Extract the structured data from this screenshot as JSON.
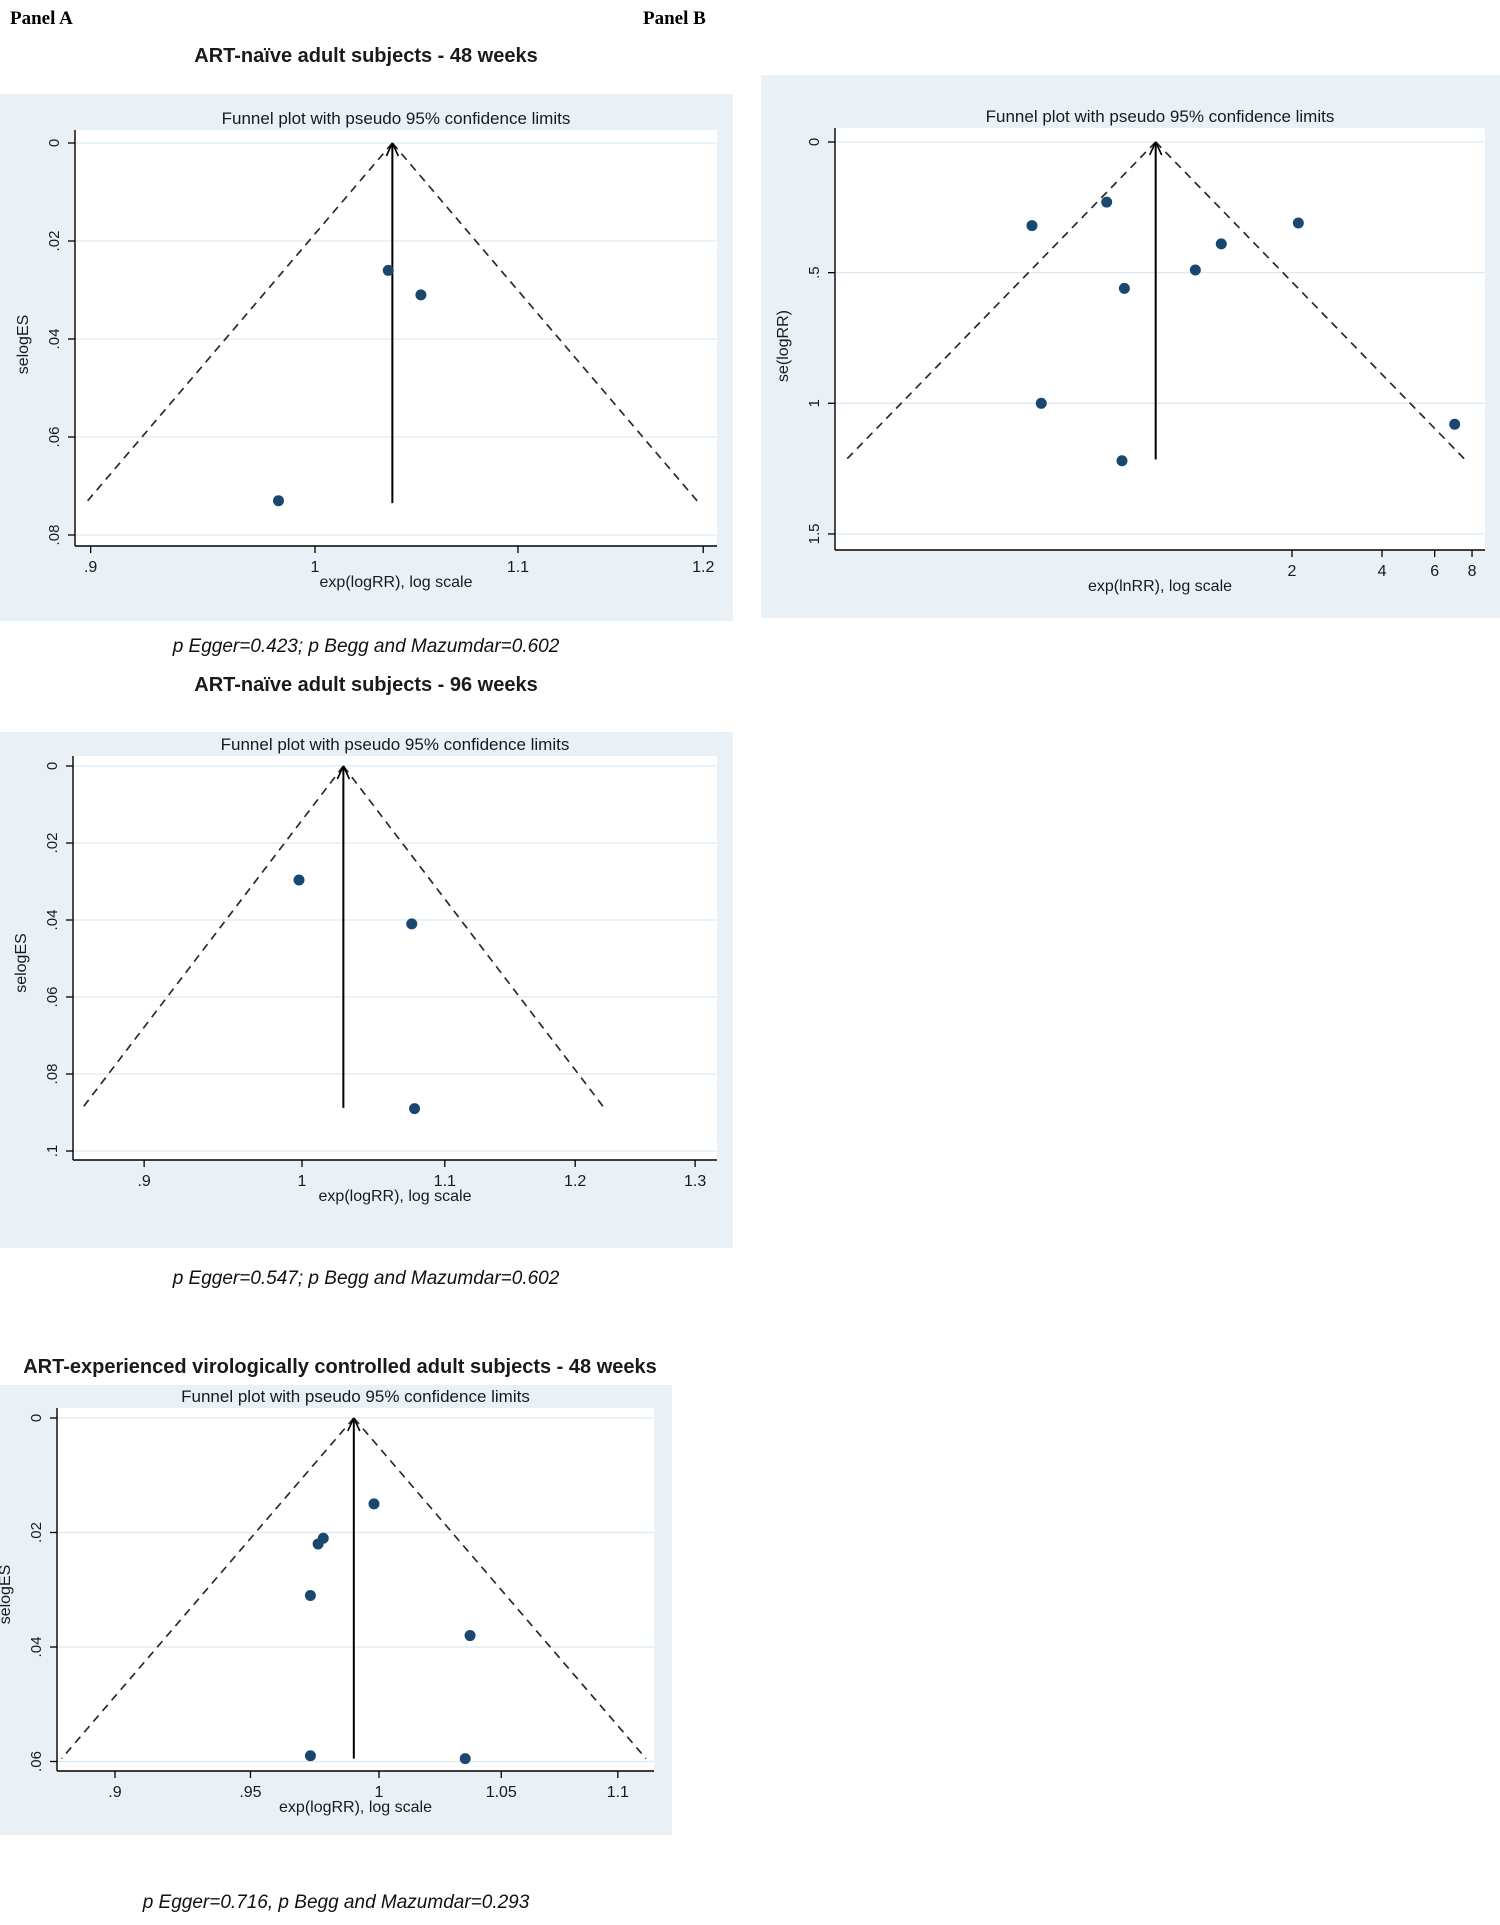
{
  "page": {
    "panel_a_label": "Panel A",
    "panel_b_label": "Panel B"
  },
  "colors": {
    "panel_background": "#e9f0f6",
    "plot_background": "#ffffff",
    "gridline": "#dce9f2",
    "axis": "#000000",
    "point": "#1a476f",
    "funnel_dashed_line": "#2b2b2b",
    "pooled_line": "#000000",
    "text": "#1a1a1a"
  },
  "chart_data": [
    {
      "id": "a48",
      "type": "funnel",
      "section_title": "ART-naïve adult subjects - 48 weeks",
      "title": "Funnel plot with pseudo 95% confidence limits",
      "caption": "p Egger=0.423; p Begg and Mazumdar=0.602",
      "xlabel": "exp(logRR), log scale",
      "ylabel": "selogES",
      "x_scale": "log",
      "x_range": [
        0.893,
        1.21
      ],
      "x_ticks": [
        0.9,
        1,
        1.1,
        1.2
      ],
      "x_tick_labels": [
        ".9",
        "1",
        "1.1",
        "1.2"
      ],
      "y_ticks": [
        0,
        0.02,
        0.04,
        0.06,
        0.08
      ],
      "y_tick_labels": [
        "0",
        ".02",
        ".04",
        ".06",
        ".08"
      ],
      "y_max": 0.082,
      "pooled_estimate": 1.037,
      "funnel_se_max": 0.0735,
      "points": [
        [
          1.035,
          0.026
        ],
        [
          1.051,
          0.031
        ],
        [
          0.983,
          0.073
        ]
      ]
    },
    {
      "id": "b",
      "type": "funnel",
      "section_title": "",
      "title": "Funnel plot with pseudo 95% confidence limits",
      "caption": "",
      "xlabel": "exp(lnRR), log scale",
      "ylabel": "se(logRR)",
      "x_scale": "log",
      "x_range": [
        0.059,
        8.9
      ],
      "x_ticks": [
        2,
        4,
        6,
        8
      ],
      "x_tick_labels": [
        "2",
        "4",
        "6",
        "8"
      ],
      "y_ticks": [
        0,
        0.5,
        1,
        1.5
      ],
      "y_tick_labels": [
        "0",
        ".5",
        "1",
        "1.5"
      ],
      "y_max": 1.56,
      "pooled_estimate": 0.7,
      "funnel_se_max": 1.215,
      "points": [
        [
          0.48,
          0.23
        ],
        [
          0.27,
          0.32
        ],
        [
          2.1,
          0.31
        ],
        [
          1.16,
          0.39
        ],
        [
          0.95,
          0.49
        ],
        [
          0.55,
          0.56
        ],
        [
          0.29,
          1.0
        ],
        [
          7.0,
          1.08
        ],
        [
          0.54,
          1.22
        ]
      ]
    },
    {
      "id": "a96",
      "type": "funnel",
      "section_title": "ART-naïve adult subjects - 96 weeks",
      "title": "Funnel plot with pseudo 95% confidence limits",
      "caption": "p Egger=0.547; p Begg and Mazumdar=0.602",
      "xlabel": "exp(logRR), log scale",
      "ylabel": "selogES",
      "x_scale": "log",
      "x_range": [
        0.857,
        1.32
      ],
      "x_ticks": [
        0.9,
        1,
        1.1,
        1.2,
        1.3
      ],
      "x_tick_labels": [
        ".9",
        "1",
        "1.1",
        "1.2",
        "1.3"
      ],
      "y_ticks": [
        0,
        0.02,
        0.04,
        0.06,
        0.08,
        0.1
      ],
      "y_tick_labels": [
        "0",
        ".02",
        ".04",
        ".06",
        ".08",
        ".1"
      ],
      "y_max": 0.102,
      "pooled_estimate": 1.028,
      "funnel_se_max": 0.0888,
      "points": [
        [
          0.998,
          0.0296
        ],
        [
          1.076,
          0.041
        ],
        [
          1.078,
          0.089
        ]
      ]
    },
    {
      "id": "exp48",
      "type": "funnel",
      "section_title": "ART-experienced virologically controlled adult subjects - 48 weeks",
      "title": "Funnel plot with pseudo 95% confidence limits",
      "caption": "p Egger=0.716, p Begg and Mazumdar=0.293",
      "xlabel": "exp(logRR), log scale",
      "ylabel": "selogES",
      "x_scale": "log",
      "x_range": [
        0.879,
        1.117
      ],
      "x_ticks": [
        0.9,
        0.95,
        1,
        1.05,
        1.1
      ],
      "x_tick_labels": [
        ".9",
        ".95",
        "1",
        "1.05",
        "1.1"
      ],
      "y_ticks": [
        0,
        0.02,
        0.04,
        0.06
      ],
      "y_tick_labels": [
        "0",
        ".02",
        ".04",
        ".06"
      ],
      "y_max": 0.0617,
      "pooled_estimate": 0.99,
      "funnel_se_max": 0.0595,
      "points": [
        [
          0.998,
          0.015
        ],
        [
          0.976,
          0.022
        ],
        [
          0.978,
          0.021
        ],
        [
          0.973,
          0.031
        ],
        [
          1.037,
          0.038
        ],
        [
          0.973,
          0.059
        ],
        [
          1.035,
          0.0595
        ]
      ]
    }
  ]
}
